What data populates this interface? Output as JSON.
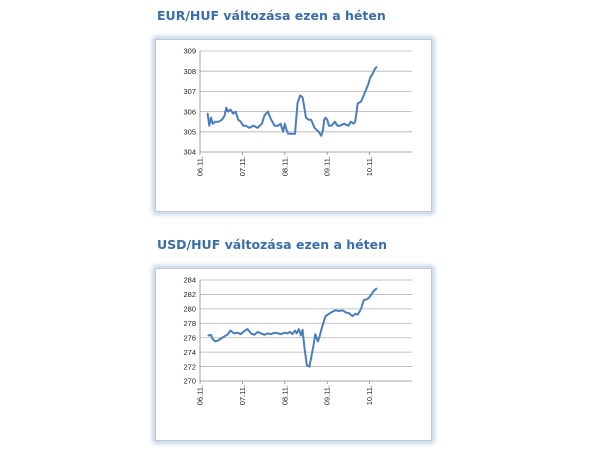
{
  "charts": [
    {
      "title": "EUR/HUF változása ezen a héten",
      "chart_data": {
        "type": "line",
        "ylim": [
          304,
          309
        ],
        "yticks": [
          304,
          305,
          306,
          307,
          308,
          309
        ],
        "categories": [
          "06.11.",
          "07.11.",
          "08.11.",
          "09.11.",
          "10.11."
        ],
        "grid": "horizontal",
        "color": "#4a7ebb",
        "x": [
          0.18,
          0.22,
          0.26,
          0.3,
          0.36,
          0.44,
          0.52,
          0.58,
          0.62,
          0.66,
          0.72,
          0.78,
          0.84,
          0.9,
          0.96,
          1.02,
          1.08,
          1.16,
          1.26,
          1.36,
          1.46,
          1.52,
          1.6,
          1.68,
          1.76,
          1.84,
          1.9,
          1.96,
          2.0,
          2.04,
          2.08,
          2.14,
          2.2,
          2.24,
          2.3,
          2.36,
          2.42,
          2.46,
          2.5,
          2.56,
          2.62,
          2.7,
          2.8,
          2.86,
          2.9,
          2.93,
          2.96,
          3.0,
          3.04,
          3.1,
          3.14,
          3.18,
          3.24,
          3.3,
          3.4,
          3.5,
          3.56,
          3.62,
          3.66,
          3.72,
          3.8,
          3.86,
          3.9,
          3.96,
          4.02,
          4.08,
          4.12,
          4.16
        ],
        "values": [
          305.9,
          305.3,
          305.7,
          305.4,
          305.5,
          305.5,
          305.6,
          305.8,
          306.2,
          306.0,
          306.1,
          305.9,
          306.0,
          305.6,
          305.5,
          305.3,
          305.3,
          305.2,
          305.3,
          305.2,
          305.4,
          305.8,
          306.0,
          305.6,
          305.3,
          305.3,
          305.4,
          305.0,
          305.4,
          305.1,
          304.9,
          304.9,
          304.9,
          304.9,
          306.4,
          306.8,
          306.7,
          306.2,
          305.7,
          305.6,
          305.6,
          305.2,
          305.0,
          304.8,
          305.1,
          305.6,
          305.7,
          305.6,
          305.3,
          305.3,
          305.4,
          305.5,
          305.3,
          305.3,
          305.4,
          305.3,
          305.5,
          305.4,
          305.5,
          306.4,
          306.5,
          306.8,
          307.0,
          307.3,
          307.7,
          307.9,
          308.1,
          308.2
        ]
      }
    },
    {
      "title": "USD/HUF változása ezen a héten",
      "chart_data": {
        "type": "line",
        "ylim": [
          270,
          284
        ],
        "yticks": [
          270,
          272,
          274,
          276,
          278,
          280,
          282,
          284
        ],
        "categories": [
          "06.11.",
          "07.11.",
          "08.11.",
          "09.11.",
          "10.11."
        ],
        "grid": "horizontal",
        "color": "#4a7ebb",
        "x": [
          0.2,
          0.26,
          0.3,
          0.36,
          0.42,
          0.5,
          0.58,
          0.66,
          0.72,
          0.8,
          0.88,
          0.96,
          1.04,
          1.12,
          1.2,
          1.28,
          1.36,
          1.44,
          1.52,
          1.6,
          1.68,
          1.76,
          1.84,
          1.92,
          2.0,
          2.06,
          2.12,
          2.18,
          2.24,
          2.28,
          2.33,
          2.38,
          2.42,
          2.46,
          2.52,
          2.58,
          2.62,
          2.68,
          2.72,
          2.78,
          2.82,
          2.88,
          2.96,
          3.04,
          3.12,
          3.2,
          3.28,
          3.36,
          3.44,
          3.52,
          3.6,
          3.66,
          3.72,
          3.8,
          3.86,
          3.92,
          3.98,
          4.04,
          4.1,
          4.16
        ],
        "values": [
          276.3,
          276.4,
          275.8,
          275.5,
          275.6,
          275.9,
          276.2,
          276.5,
          277.0,
          276.6,
          276.7,
          276.5,
          276.9,
          277.2,
          276.6,
          276.4,
          276.8,
          276.6,
          276.4,
          276.6,
          276.5,
          276.7,
          276.6,
          276.5,
          276.7,
          276.6,
          276.8,
          276.5,
          277.0,
          276.6,
          277.2,
          276.3,
          277.1,
          274.8,
          272.2,
          272.0,
          273.2,
          275.0,
          276.5,
          275.5,
          276.2,
          277.5,
          279.0,
          279.3,
          279.6,
          279.8,
          279.7,
          279.8,
          279.5,
          279.4,
          279.0,
          279.3,
          279.2,
          280.0,
          281.2,
          281.3,
          281.5,
          282.0,
          282.5,
          282.8
        ]
      }
    }
  ]
}
